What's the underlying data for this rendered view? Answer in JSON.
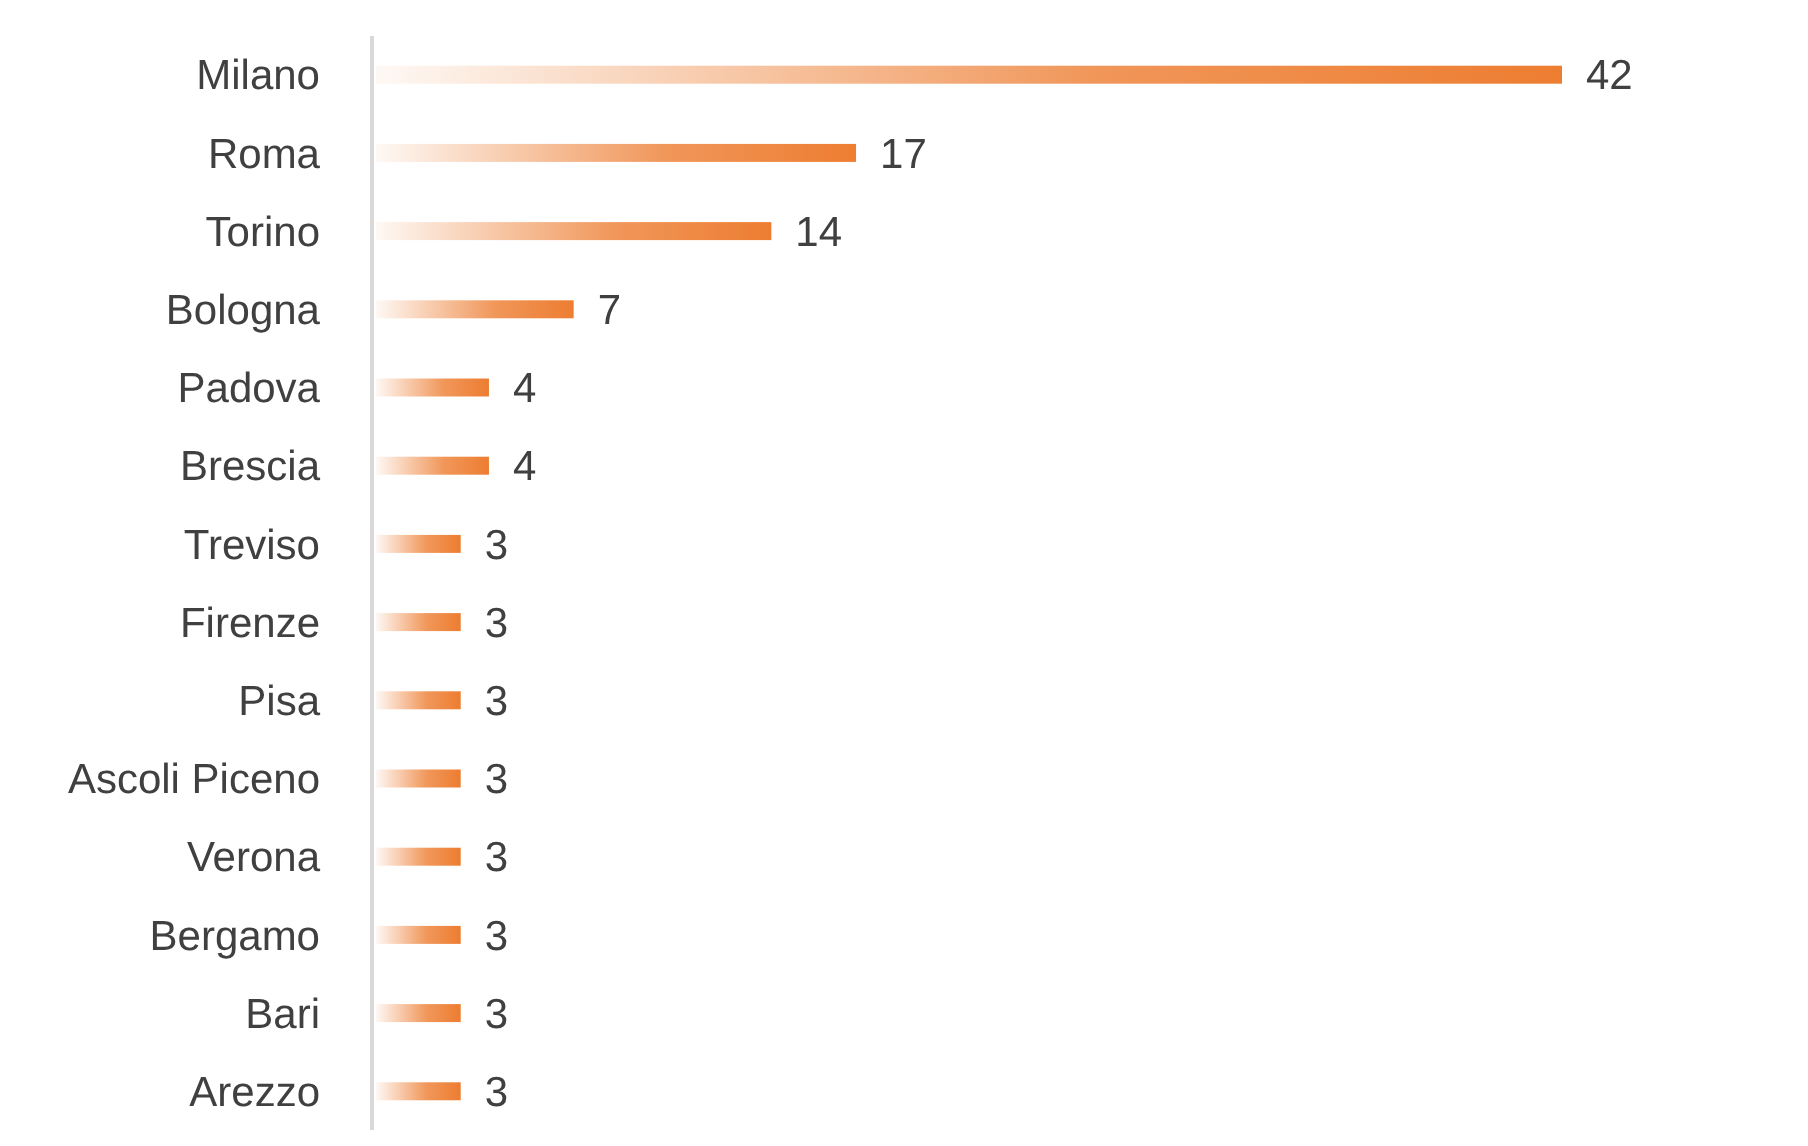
{
  "chart_data": {
    "type": "bar",
    "orientation": "horizontal",
    "categories": [
      "Milano",
      "Roma",
      "Torino",
      "Bologna",
      "Padova",
      "Brescia",
      "Treviso",
      "Firenze",
      "Pisa",
      "Ascoli Piceno",
      "Verona",
      "Bergamo",
      "Bari",
      "Arezzo"
    ],
    "values": [
      42,
      17,
      14,
      7,
      4,
      4,
      3,
      3,
      3,
      3,
      3,
      3,
      3,
      3
    ],
    "color": "#ed7d31",
    "data_labels": true
  }
}
